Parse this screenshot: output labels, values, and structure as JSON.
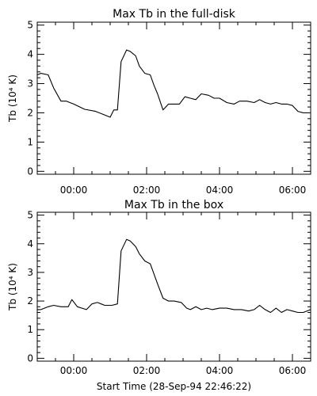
{
  "chart_data": [
    {
      "type": "line",
      "title": "Max Tb in the full-disk",
      "ylabel": "Tb (10⁴ K)",
      "xlabel": "",
      "xlim": [
        -1.0,
        6.5
      ],
      "ylim": [
        -0.1,
        5.1
      ],
      "xtick_values": [
        0,
        2,
        4,
        6
      ],
      "xtick_labels": [
        "00:00",
        "02:00",
        "04:00",
        "06:00"
      ],
      "ytick_values": [
        0,
        1,
        2,
        3,
        4,
        5
      ],
      "ytick_labels": [
        "0",
        "1",
        "2",
        "3",
        "4",
        "5"
      ],
      "series": [
        {
          "x": [
            -1.0,
            -0.9,
            -0.7,
            -0.55,
            -0.35,
            -0.2,
            0.0,
            0.3,
            0.6,
            0.8,
            1.0,
            1.1,
            1.2,
            1.3,
            1.45,
            1.55,
            1.7,
            1.8,
            1.95,
            2.1,
            2.2,
            2.3,
            2.45,
            2.6,
            2.75,
            2.9,
            3.05,
            3.2,
            3.35,
            3.5,
            3.7,
            3.85,
            4.0,
            4.2,
            4.4,
            4.55,
            4.75,
            4.95,
            5.1,
            5.25,
            5.4,
            5.55,
            5.7,
            5.85,
            6.0,
            6.15,
            6.3,
            6.5
          ],
          "y": [
            3.3,
            3.35,
            3.3,
            2.85,
            2.4,
            2.4,
            2.3,
            2.12,
            2.05,
            1.95,
            1.85,
            2.1,
            2.1,
            3.75,
            4.15,
            4.1,
            3.95,
            3.6,
            3.35,
            3.3,
            2.95,
            2.65,
            2.1,
            2.3,
            2.3,
            2.3,
            2.55,
            2.5,
            2.45,
            2.65,
            2.6,
            2.5,
            2.5,
            2.35,
            2.3,
            2.4,
            2.4,
            2.35,
            2.45,
            2.35,
            2.3,
            2.35,
            2.3,
            2.3,
            2.25,
            2.05,
            2.0,
            2.0
          ]
        }
      ]
    },
    {
      "type": "line",
      "title": "Max Tb in the box",
      "ylabel": "Tb (10⁴ K)",
      "xlabel": "Start Time (28-Sep-94 22:46:22)",
      "xlim": [
        -1.0,
        6.5
      ],
      "ylim": [
        -0.1,
        5.1
      ],
      "xtick_values": [
        0,
        2,
        4,
        6
      ],
      "xtick_labels": [
        "00:00",
        "02:00",
        "04:00",
        "06:00"
      ],
      "ytick_values": [
        0,
        1,
        2,
        3,
        4,
        5
      ],
      "ytick_labels": [
        "0",
        "1",
        "2",
        "3",
        "4",
        "5"
      ],
      "series": [
        {
          "x": [
            -1.0,
            -0.9,
            -0.7,
            -0.55,
            -0.35,
            -0.15,
            -0.05,
            0.1,
            0.35,
            0.5,
            0.65,
            0.85,
            1.05,
            1.2,
            1.3,
            1.45,
            1.55,
            1.7,
            1.8,
            1.95,
            2.1,
            2.2,
            2.3,
            2.45,
            2.6,
            2.75,
            2.95,
            3.1,
            3.2,
            3.35,
            3.5,
            3.65,
            3.8,
            4.0,
            4.2,
            4.4,
            4.6,
            4.8,
            4.95,
            5.1,
            5.25,
            5.4,
            5.55,
            5.7,
            5.85,
            6.0,
            6.15,
            6.3,
            6.5
          ],
          "y": [
            1.7,
            1.7,
            1.8,
            1.85,
            1.8,
            1.8,
            2.05,
            1.8,
            1.7,
            1.9,
            1.95,
            1.85,
            1.85,
            1.9,
            3.75,
            4.15,
            4.1,
            3.9,
            3.65,
            3.4,
            3.3,
            2.95,
            2.6,
            2.1,
            2.0,
            2.0,
            1.95,
            1.75,
            1.7,
            1.8,
            1.7,
            1.75,
            1.7,
            1.75,
            1.75,
            1.7,
            1.7,
            1.65,
            1.7,
            1.85,
            1.7,
            1.6,
            1.75,
            1.6,
            1.7,
            1.65,
            1.6,
            1.6,
            1.7
          ]
        }
      ]
    }
  ]
}
